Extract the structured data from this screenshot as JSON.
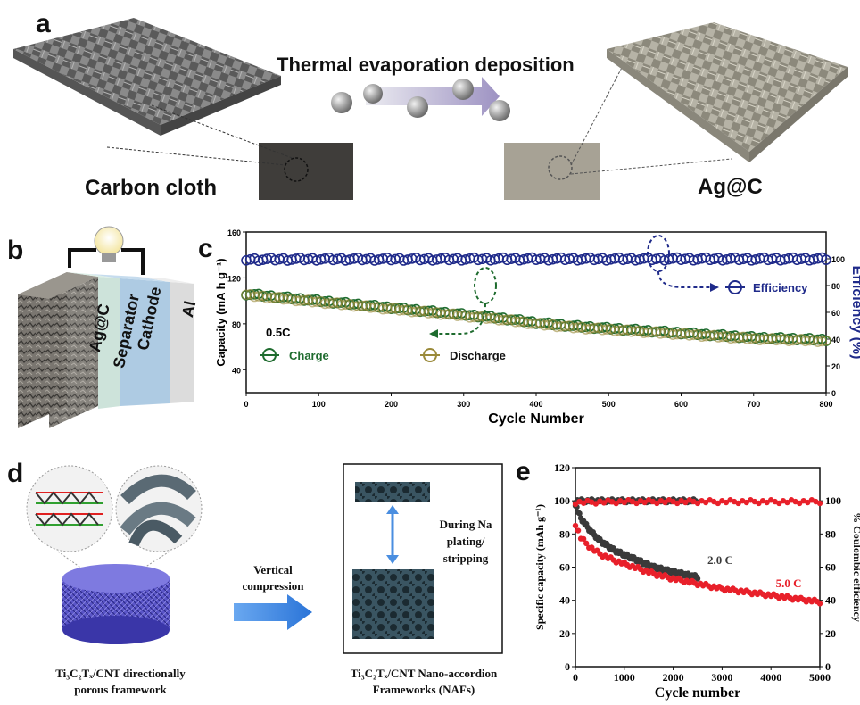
{
  "panel_labels": {
    "a": "a",
    "b": "b",
    "c": "c",
    "d": "d",
    "e": "e"
  },
  "panel_a": {
    "process_label": "Thermal evaporation deposition",
    "left_label": "Carbon cloth",
    "right_label": "Ag@C"
  },
  "panel_b": {
    "layers": [
      "Ag@C",
      "Separator",
      "Cathode",
      "Al"
    ]
  },
  "panel_c": {
    "rate_label": "0.5C",
    "legend": {
      "charge": "Charge",
      "discharge": "Discharge",
      "efficiency": "Efficiency"
    },
    "colors": {
      "capacity": "#1e6b2e",
      "discharge": "#9a8a3a",
      "efficiency": "#1f2a8a"
    }
  },
  "panel_d": {
    "left_caption": [
      "Ti₃C₂Tₓ/CNT directionally",
      "porous framework"
    ],
    "arrow_label": [
      "Vertical",
      "compression"
    ],
    "box_label": [
      "During Na",
      "plating/",
      "stripping"
    ],
    "right_caption": [
      "Ti₃C₂Tₓ/CNT Nano-accordion",
      "Frameworks (NAFs)"
    ]
  },
  "panel_e": {
    "annotations": {
      "rate1": "2.0 C",
      "rate2": "5.0 C"
    },
    "colors": {
      "rate1": "#3a3a3a",
      "rate2": "#e8202a"
    }
  },
  "chart_data": [
    {
      "type": "line",
      "panel": "c",
      "xlabel": "Cycle Number",
      "ylabel": "Capacity (mA h g⁻¹)",
      "y2label": "Efficiency (%)",
      "xlim": [
        0,
        800
      ],
      "ylim": [
        20,
        160
      ],
      "y2lim": [
        0,
        120
      ],
      "xticks": [
        0,
        100,
        200,
        300,
        400,
        500,
        600,
        700,
        800
      ],
      "yticks": [
        40,
        80,
        120,
        160
      ],
      "y2ticks": [
        0,
        20,
        40,
        60,
        80,
        100
      ],
      "series": [
        {
          "name": "Charge",
          "axis": "left",
          "x": [
            0,
            50,
            100,
            150,
            200,
            250,
            300,
            350,
            400,
            450,
            500,
            550,
            600,
            650,
            700,
            750,
            800
          ],
          "y": [
            106,
            103,
            100,
            97,
            94,
            91,
            88,
            85,
            81,
            78,
            76,
            74,
            72,
            70,
            68,
            67,
            66
          ]
        },
        {
          "name": "Discharge",
          "axis": "left",
          "x": [
            0,
            50,
            100,
            150,
            200,
            250,
            300,
            350,
            400,
            450,
            500,
            550,
            600,
            650,
            700,
            750,
            800
          ],
          "y": [
            105,
            102,
            99,
            96,
            93,
            90,
            87,
            84,
            80,
            77,
            75,
            73,
            71,
            69,
            67,
            66,
            65
          ]
        },
        {
          "name": "Efficiency",
          "axis": "right",
          "x": [
            0,
            100,
            200,
            300,
            400,
            500,
            600,
            700,
            800
          ],
          "y": [
            99.5,
            99.8,
            99.7,
            99.8,
            99.9,
            99.8,
            99.9,
            99.8,
            99.9
          ]
        }
      ]
    },
    {
      "type": "line",
      "panel": "e",
      "xlabel": "Cycle number",
      "ylabel": "Specific capacity (mAh g⁻¹)",
      "y2label": "% Coulombic efficiency",
      "xlim": [
        0,
        5000
      ],
      "ylim": [
        0,
        120
      ],
      "y2lim": [
        0,
        120
      ],
      "xticks": [
        0,
        1000,
        2000,
        3000,
        4000,
        5000
      ],
      "yticks": [
        0,
        20,
        40,
        60,
        80,
        100,
        120
      ],
      "y2ticks": [
        0,
        20,
        40,
        60,
        80,
        100
      ],
      "series": [
        {
          "name": "2.0 C",
          "axis": "left",
          "x": [
            0,
            100,
            300,
            500,
            800,
            1200,
            1600,
            2000,
            2500
          ],
          "y": [
            98,
            90,
            82,
            76,
            70,
            65,
            60,
            57,
            54
          ]
        },
        {
          "name": "5.0 C",
          "axis": "left",
          "x": [
            0,
            100,
            300,
            500,
            800,
            1200,
            1600,
            2000,
            2500,
            3000,
            3500,
            4000,
            4500,
            5000
          ],
          "y": [
            86,
            78,
            72,
            68,
            64,
            60,
            56,
            53,
            50,
            47,
            45,
            43,
            41,
            39
          ]
        },
        {
          "name": "2.0 C efficiency",
          "axis": "right",
          "x": [
            0,
            1000,
            2000,
            2500
          ],
          "y": [
            100,
            100,
            100,
            100
          ]
        },
        {
          "name": "5.0 C efficiency",
          "axis": "right",
          "x": [
            0,
            1000,
            2000,
            3000,
            4000,
            5000
          ],
          "y": [
            99,
            99.5,
            99.5,
            99.5,
            99.5,
            99.5
          ]
        }
      ]
    }
  ]
}
